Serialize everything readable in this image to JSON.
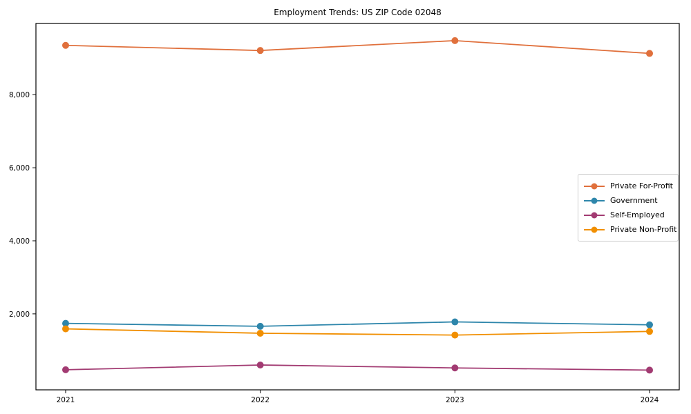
{
  "title": "Employment Trends: US ZIP Code 02048",
  "chart_data": {
    "type": "line",
    "title": "Employment Trends: US ZIP Code 02048",
    "xlabel": "",
    "ylabel": "",
    "x": [
      2021,
      2022,
      2023,
      2024
    ],
    "x_tick_labels": [
      "2021",
      "2022",
      "2023",
      "2024"
    ],
    "y_ticks": [
      2000,
      4000,
      6000,
      8000
    ],
    "y_tick_labels": [
      "2,000",
      "4,000",
      "6,000",
      "8,000"
    ],
    "ylim": [
      -80,
      9950
    ],
    "grid": false,
    "legend_position": "center-right",
    "series": [
      {
        "name": "Private For-Profit",
        "color": "#E0703C",
        "values": [
          9350,
          9210,
          9480,
          9130
        ]
      },
      {
        "name": "Government",
        "color": "#2E86AB",
        "values": [
          1740,
          1660,
          1780,
          1700
        ]
      },
      {
        "name": "Self-Employed",
        "color": "#A23B72",
        "values": [
          470,
          600,
          520,
          460
        ]
      },
      {
        "name": "Private Non-Profit",
        "color": "#F18F01",
        "values": [
          1590,
          1470,
          1420,
          1520
        ]
      }
    ]
  }
}
